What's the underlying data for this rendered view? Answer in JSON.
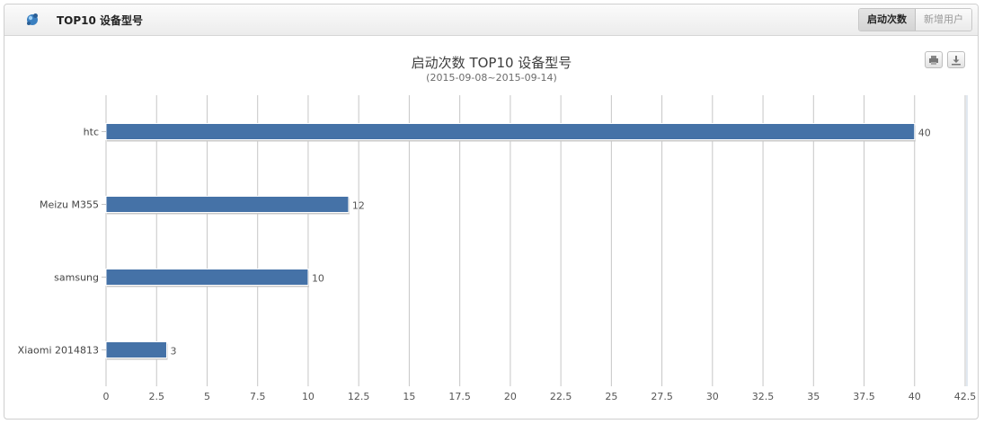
{
  "header": {
    "title": "TOP10 设备型号",
    "icon": "device-icon",
    "tabs": [
      {
        "label": "启动次数",
        "active": true
      },
      {
        "label": "新增用户",
        "active": false
      }
    ]
  },
  "toolbar": {
    "print_icon": "print-icon",
    "download_icon": "download-icon"
  },
  "colors": {
    "bar": "#4572a7",
    "accent_icon": "#3a7fc0"
  },
  "chart_data": {
    "type": "bar",
    "orientation": "horizontal",
    "title": "启动次数 TOP10 设备型号",
    "subtitle": "(2015-09-08~2015-09-14)",
    "categories": [
      "htc",
      "Meizu M355",
      "samsung",
      "Xiaomi 2014813"
    ],
    "values": [
      40,
      12,
      10,
      3
    ],
    "xlim": [
      0,
      42.5
    ],
    "xticks": [
      "0",
      "2.5",
      "5",
      "7.5",
      "10",
      "12.5",
      "15",
      "17.5",
      "20",
      "22.5",
      "25",
      "27.5",
      "30",
      "32.5",
      "35",
      "37.5",
      "40",
      "42.5"
    ],
    "grid": true,
    "data_labels": true,
    "legend": "none"
  }
}
